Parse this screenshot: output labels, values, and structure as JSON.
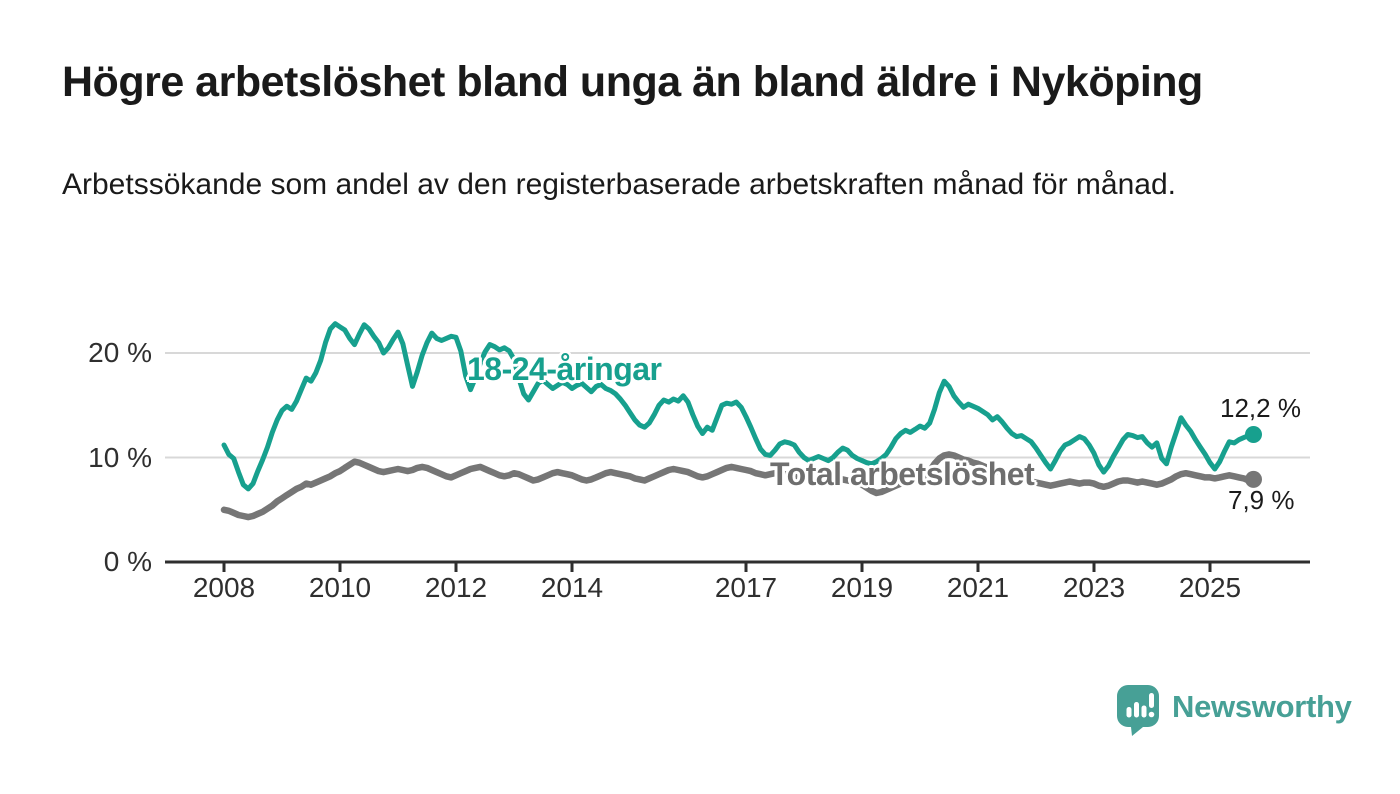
{
  "title": "Högre arbetslöshet bland unga än bland äldre i Nyköping",
  "subtitle": "Arbetssökande som andel av den registerbaserade arbetskraften månad för månad.",
  "branding": {
    "logo_text": "Newsworthy",
    "logo_icon": "newsworthy-speech-bubble-bar-chart-icon"
  },
  "colors": {
    "young_series": "#17a08e",
    "total_series": "#767676",
    "total_label": "#6e6e6e",
    "grid": "#d8d8d8",
    "axis": "#2e2e2e",
    "text": "#1a1a1a",
    "tick_text": "#2f2f2f",
    "logo": "#47a096",
    "background": "#ffffff"
  },
  "chart_data": {
    "type": "line",
    "title": "Högre arbetslöshet bland unga än bland äldre i Nyköping",
    "subtitle": "Arbetssökande som andel av den registerbaserade arbetskraften månad för månad.",
    "x_unit": "months",
    "x_start": "2008-01",
    "x_end": "2025-10",
    "ylim": [
      0,
      23.5
    ],
    "grid": "horizontal",
    "legend_position": "inline-labels",
    "y_ticks": [
      {
        "value": 0,
        "label": "0 %"
      },
      {
        "value": 10,
        "label": "10 %"
      },
      {
        "value": 20,
        "label": "20 %"
      }
    ],
    "x_ticks": [
      {
        "value": 2008,
        "label": "2008"
      },
      {
        "value": 2010,
        "label": "2010"
      },
      {
        "value": 2012,
        "label": "2012"
      },
      {
        "value": 2014,
        "label": "2014"
      },
      {
        "value": 2017,
        "label": "2017"
      },
      {
        "value": 2019,
        "label": "2019"
      },
      {
        "value": 2021,
        "label": "2021"
      },
      {
        "value": 2023,
        "label": "2023"
      },
      {
        "value": 2025,
        "label": "2025"
      }
    ],
    "series": [
      {
        "name": "18-24-åringar",
        "color": "#17a08e",
        "end_label": "12,2 %",
        "end_value": 12.2,
        "values": [
          11.2,
          10.3,
          9.9,
          8.6,
          7.4,
          7.0,
          7.5,
          8.7,
          9.8,
          11.0,
          12.4,
          13.6,
          14.5,
          14.9,
          14.6,
          15.4,
          16.5,
          17.6,
          17.3,
          18.1,
          19.3,
          21.0,
          22.3,
          22.8,
          22.5,
          22.2,
          21.4,
          20.8,
          21.8,
          22.7,
          22.3,
          21.6,
          21.0,
          20.0,
          20.5,
          21.3,
          22.0,
          20.9,
          18.8,
          16.8,
          18.2,
          19.8,
          21.0,
          21.9,
          21.4,
          21.2,
          21.4,
          21.6,
          21.5,
          20.2,
          17.8,
          16.5,
          17.6,
          19.0,
          20.1,
          20.8,
          20.6,
          20.3,
          20.5,
          20.2,
          19.4,
          17.6,
          16.1,
          15.5,
          16.3,
          17.1,
          17.4,
          17.0,
          16.6,
          16.9,
          17.2,
          17.0,
          16.6,
          16.9,
          17.1,
          16.7,
          16.3,
          16.8,
          17.0,
          16.6,
          16.4,
          16.1,
          15.6,
          15.0,
          14.3,
          13.6,
          13.1,
          12.9,
          13.3,
          14.1,
          15.0,
          15.5,
          15.3,
          15.6,
          15.4,
          15.9,
          15.3,
          14.1,
          13.0,
          12.3,
          12.9,
          12.6,
          13.8,
          15.0,
          15.2,
          15.1,
          15.3,
          14.8,
          13.9,
          12.9,
          11.8,
          10.8,
          10.3,
          10.2,
          10.7,
          11.3,
          11.5,
          11.4,
          11.2,
          10.5,
          10.0,
          9.7,
          9.9,
          10.1,
          9.9,
          9.7,
          10.0,
          10.5,
          10.9,
          10.7,
          10.2,
          9.9,
          9.7,
          9.5,
          9.4,
          9.6,
          9.9,
          10.3,
          11.0,
          11.8,
          12.3,
          12.6,
          12.4,
          12.7,
          13.0,
          12.8,
          13.3,
          14.6,
          16.2,
          17.3,
          16.8,
          15.9,
          15.3,
          14.8,
          15.1,
          14.9,
          14.7,
          14.4,
          14.1,
          13.6,
          13.9,
          13.4,
          12.8,
          12.3,
          12.0,
          12.1,
          11.8,
          11.5,
          10.9,
          10.2,
          9.5,
          8.9,
          9.7,
          10.6,
          11.2,
          11.4,
          11.7,
          12.0,
          11.8,
          11.2,
          10.4,
          9.3,
          8.6,
          9.2,
          10.1,
          10.9,
          11.7,
          12.2,
          12.1,
          11.9,
          12.0,
          11.4,
          11.0,
          11.4,
          9.9,
          9.4,
          11.0,
          12.4,
          13.8,
          13.1,
          12.5,
          11.7,
          11.0,
          10.3,
          9.5,
          8.9,
          9.6,
          10.6,
          11.5,
          11.4,
          11.7,
          11.9,
          12.1,
          12.2
        ]
      },
      {
        "name": "Total arbetslöshet",
        "color": "#767676",
        "end_label": "7,9 %",
        "end_value": 7.9,
        "values": [
          5.0,
          4.9,
          4.7,
          4.5,
          4.4,
          4.3,
          4.4,
          4.6,
          4.8,
          5.1,
          5.4,
          5.8,
          6.1,
          6.4,
          6.7,
          7.0,
          7.2,
          7.5,
          7.4,
          7.6,
          7.8,
          8.0,
          8.2,
          8.5,
          8.7,
          9.0,
          9.3,
          9.6,
          9.5,
          9.3,
          9.1,
          8.9,
          8.7,
          8.6,
          8.7,
          8.8,
          8.9,
          8.8,
          8.7,
          8.8,
          9.0,
          9.1,
          9.0,
          8.8,
          8.6,
          8.4,
          8.2,
          8.1,
          8.3,
          8.5,
          8.7,
          8.9,
          9.0,
          9.1,
          8.9,
          8.7,
          8.5,
          8.3,
          8.2,
          8.3,
          8.5,
          8.4,
          8.2,
          8.0,
          7.8,
          7.9,
          8.1,
          8.3,
          8.5,
          8.6,
          8.5,
          8.4,
          8.3,
          8.1,
          7.9,
          7.8,
          7.9,
          8.1,
          8.3,
          8.5,
          8.6,
          8.5,
          8.4,
          8.3,
          8.2,
          8.0,
          7.9,
          7.8,
          8.0,
          8.2,
          8.4,
          8.6,
          8.8,
          8.9,
          8.8,
          8.7,
          8.6,
          8.4,
          8.2,
          8.1,
          8.2,
          8.4,
          8.6,
          8.8,
          9.0,
          9.1,
          9.0,
          8.9,
          8.8,
          8.7,
          8.5,
          8.4,
          8.3,
          8.4,
          8.5,
          8.5,
          8.4,
          8.3,
          8.2,
          8.2,
          8.1,
          8.0,
          7.9,
          7.8,
          7.8,
          7.9,
          8.0,
          8.0,
          7.9,
          7.8,
          7.7,
          7.6,
          7.4,
          7.1,
          6.8,
          6.6,
          6.7,
          6.9,
          7.1,
          7.3,
          7.5,
          7.6,
          7.7,
          7.9,
          8.1,
          8.3,
          8.7,
          9.4,
          9.9,
          10.2,
          10.3,
          10.2,
          10.0,
          9.8,
          9.7,
          9.5,
          9.4,
          9.2,
          9.0,
          8.8,
          8.7,
          8.5,
          8.4,
          8.2,
          8.1,
          7.9,
          7.8,
          7.7,
          7.6,
          7.5,
          7.4,
          7.3,
          7.4,
          7.5,
          7.6,
          7.7,
          7.6,
          7.5,
          7.6,
          7.6,
          7.5,
          7.3,
          7.2,
          7.3,
          7.5,
          7.7,
          7.8,
          7.8,
          7.7,
          7.6,
          7.7,
          7.6,
          7.5,
          7.4,
          7.5,
          7.7,
          7.9,
          8.2,
          8.4,
          8.5,
          8.4,
          8.3,
          8.2,
          8.1,
          8.1,
          8.0,
          8.1,
          8.2,
          8.3,
          8.2,
          8.1,
          8.0,
          7.8,
          7.9
        ]
      }
    ]
  }
}
